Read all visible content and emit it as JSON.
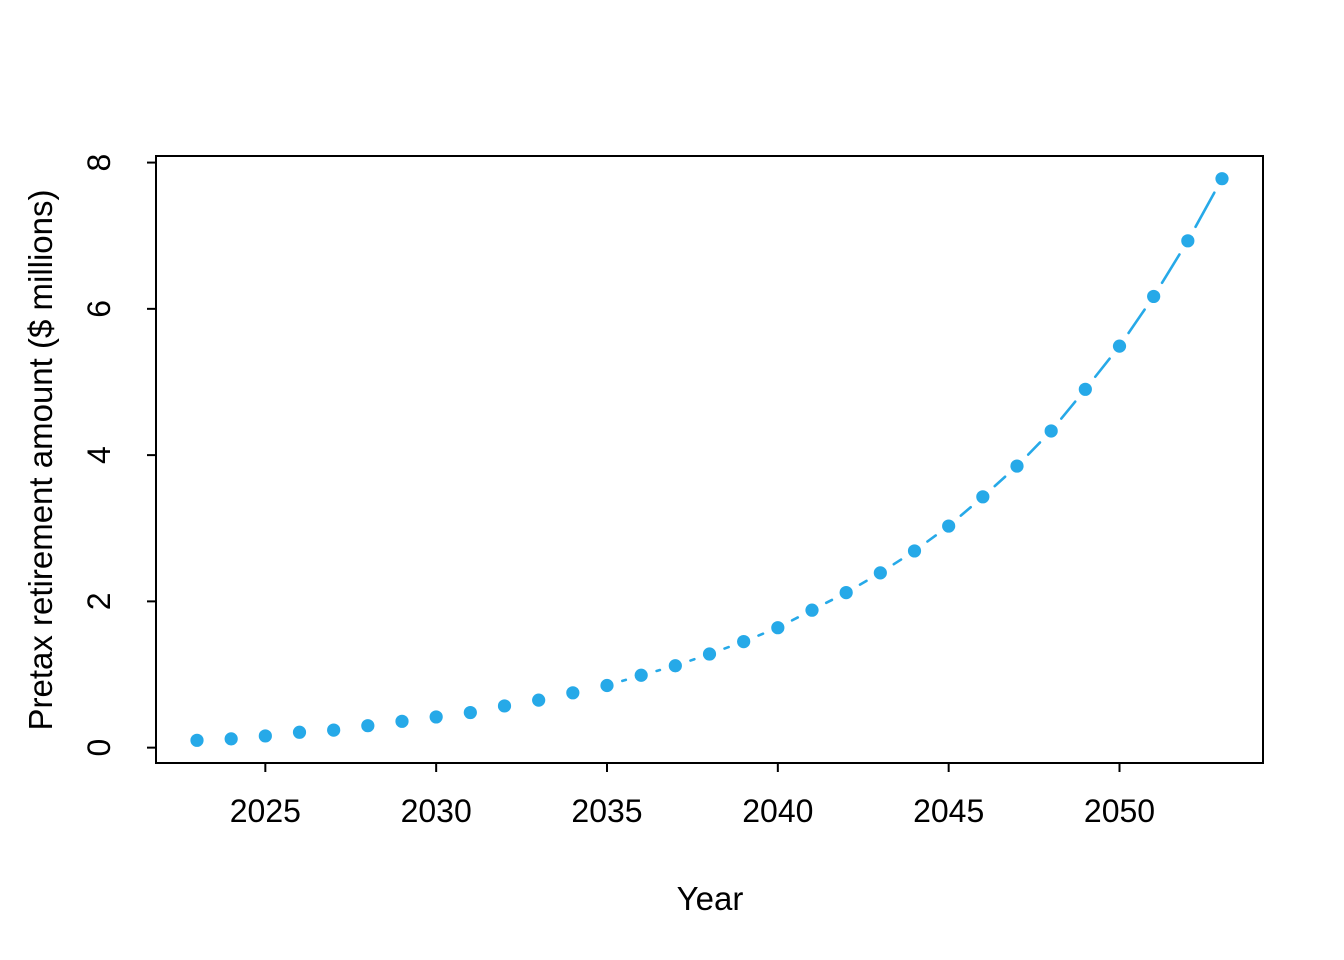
{
  "figure": {
    "background_color": "#ffffff",
    "title": "",
    "x_axis_title": "Year",
    "y_axis_title": "Pretax retirement amount ($ millions)"
  },
  "chart_data": {
    "type": "scatter",
    "title": "",
    "xlabel": "Year",
    "ylabel": "Pretax retirement amount ($ millions)",
    "x": [
      2023,
      2024,
      2025,
      2026,
      2027,
      2028,
      2029,
      2030,
      2031,
      2032,
      2033,
      2034,
      2035,
      2036,
      2037,
      2038,
      2039,
      2040,
      2041,
      2042,
      2043,
      2044,
      2045,
      2046,
      2047,
      2048,
      2049,
      2050,
      2051,
      2052,
      2053
    ],
    "y": [
      0.1,
      0.12,
      0.16,
      0.21,
      0.24,
      0.3,
      0.36,
      0.42,
      0.48,
      0.57,
      0.65,
      0.75,
      0.85,
      0.99,
      1.12,
      1.28,
      1.45,
      1.64,
      1.88,
      2.12,
      2.39,
      2.69,
      3.03,
      3.43,
      3.85,
      4.33,
      4.9,
      5.49,
      6.17,
      6.93,
      7.78
    ],
    "x_tick_labels": [
      "2025",
      "2030",
      "2035",
      "2040",
      "2045",
      "2050"
    ],
    "x_tick_values": [
      2025,
      2030,
      2035,
      2040,
      2045,
      2050
    ],
    "y_tick_labels": [
      "0",
      "2",
      "4",
      "6",
      "8"
    ],
    "y_tick_values": [
      0,
      2,
      4,
      6,
      8
    ],
    "xlim": [
      2021.8,
      2054.2
    ],
    "ylim": [
      -0.21,
      8.09
    ],
    "grid": false,
    "legend": null,
    "marker": "filled-circle",
    "plot_style": "points with short connector dashes (R type='b')",
    "point_color": "#26A9E8",
    "line_color": "#26A9E8",
    "axis_color": "#000000",
    "text_color": "#000000"
  }
}
